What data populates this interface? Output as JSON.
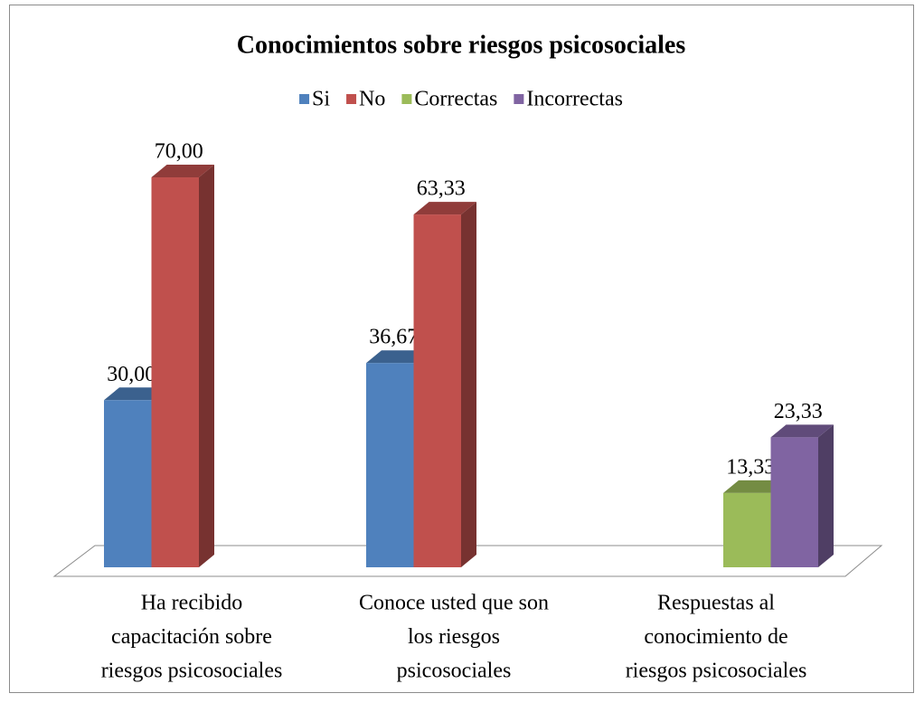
{
  "chart_data": {
    "type": "bar3d",
    "title": "Conocimientos sobre riesgos psicosociales",
    "categories": [
      [
        "Ha recibido",
        "capacitación sobre",
        "riesgos psicosociales"
      ],
      [
        "Conoce usted que son",
        "los riesgos",
        "psicosociales"
      ],
      [
        "Respuestas al",
        "conocimiento de",
        "riesgos psicosociales"
      ]
    ],
    "series": [
      {
        "name": "Si",
        "color": "#4f81bd",
        "values": [
          30,
          36.67,
          null
        ],
        "value_labels": [
          "30,00",
          "36,67",
          null
        ]
      },
      {
        "name": "No",
        "color": "#c0504d",
        "values": [
          70,
          63.33,
          null
        ],
        "value_labels": [
          "70,00",
          "63,33",
          null
        ]
      },
      {
        "name": "Correctas",
        "color": "#9bbb59",
        "values": [
          null,
          null,
          13.33
        ],
        "value_labels": [
          null,
          null,
          "13,33"
        ]
      },
      {
        "name": "Incorrectas",
        "color": "#8064a2",
        "values": [
          null,
          null,
          23.33
        ],
        "value_labels": [
          null,
          null,
          "23,33"
        ]
      }
    ],
    "legend": "top"
  }
}
